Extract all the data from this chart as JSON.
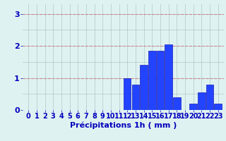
{
  "hours": [
    0,
    1,
    2,
    3,
    4,
    5,
    6,
    7,
    8,
    9,
    10,
    11,
    12,
    13,
    14,
    15,
    16,
    17,
    18,
    19,
    20,
    21,
    22,
    23
  ],
  "values": [
    0,
    0,
    0,
    0,
    0,
    0,
    0,
    0,
    0,
    0,
    0,
    0,
    1.0,
    0.8,
    1.4,
    1.85,
    1.85,
    2.05,
    0.4,
    0.0,
    0.2,
    0.55,
    0.8,
    0.2
  ],
  "bar_color": "#2244ff",
  "bar_edge_color": "#0000aa",
  "background_color": "#dff2f2",
  "grid_color": "#b0c8c8",
  "hline_color": "#cc8888",
  "xlabel": "Précipitations 1h ( mm )",
  "xlabel_color": "#0000bb",
  "tick_color": "#0000bb",
  "ylim": [
    0,
    3.3
  ],
  "yticks": [
    0,
    1,
    2,
    3
  ],
  "xlabel_fontsize": 8,
  "tick_fontsize": 7
}
